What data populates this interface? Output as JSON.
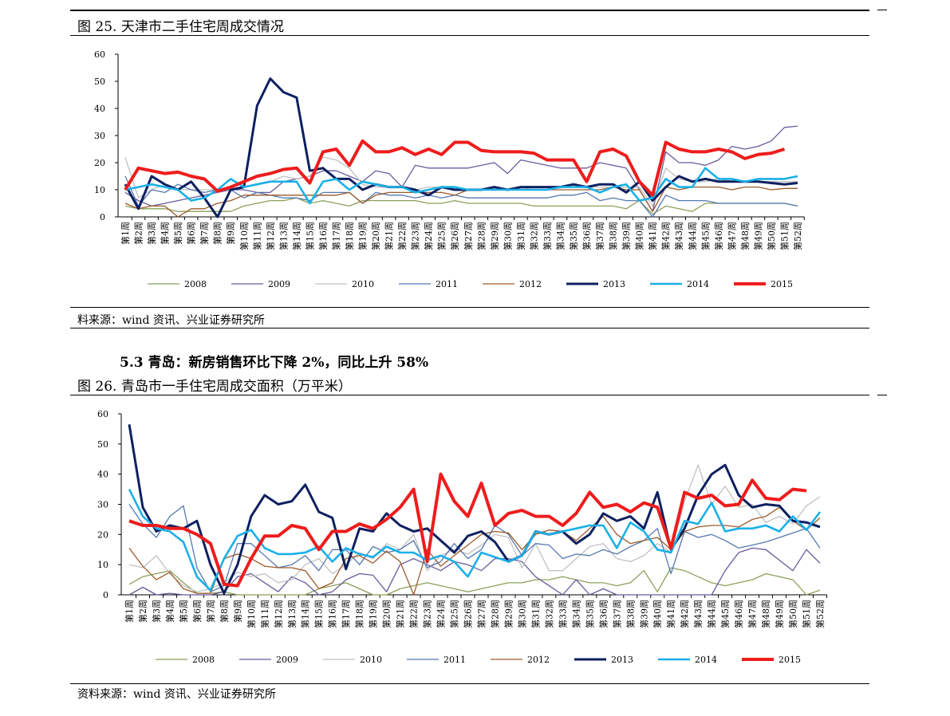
{
  "section_heading": "5.3 青岛：新房销售环比下降 2%，同比上升 58%",
  "chart_data": [
    {
      "type": "line",
      "title": "图 25.  天津市二手住宅周成交情况",
      "source": "料来源：wind 资讯、兴业证券研究所",
      "categories": [
        "第1周",
        "第2周",
        "第3周",
        "第4周",
        "第5周",
        "第6周",
        "第7周",
        "第8周",
        "第9周",
        "第10周",
        "第11周",
        "第12周",
        "第13周",
        "第14周",
        "第15周",
        "第16周",
        "第17周",
        "第18周",
        "第19周",
        "第20周",
        "第21周",
        "第22周",
        "第23周",
        "第24周",
        "第25周",
        "第26周",
        "第27周",
        "第28周",
        "第29周",
        "第30周",
        "第31周",
        "第32周",
        "第33周",
        "第34周",
        "第35周",
        "第36周",
        "第37周",
        "第38周",
        "第39周",
        "第40周",
        "第41周",
        "第42周",
        "第43周",
        "第44周",
        "第45周",
        "第46周",
        "第47周",
        "第48周",
        "第49周",
        "第50周",
        "第51周",
        "第52周"
      ],
      "ylim": [
        0,
        60
      ],
      "yticks": [
        0,
        10,
        20,
        30,
        40,
        50,
        60
      ],
      "grid": false,
      "legend": "bottom",
      "series": [
        {
          "name": "2008",
          "color": "#8aa05a",
          "values": [
            4,
            3,
            3,
            3,
            2,
            2,
            2,
            2,
            2,
            4,
            5,
            6,
            6,
            7,
            5,
            6,
            5,
            4,
            6,
            6,
            6,
            6,
            6,
            5,
            5,
            6,
            5,
            5,
            5,
            5,
            5,
            4,
            4,
            4,
            4,
            4,
            4,
            4,
            3,
            6,
            1,
            4,
            3,
            2,
            5,
            5,
            5,
            5,
            5,
            5,
            5,
            4
          ]
        },
        {
          "name": "2009",
          "color": "#6a5a9c",
          "values": [
            9,
            6,
            4,
            5,
            6,
            7,
            8,
            9,
            10,
            10,
            9,
            9,
            13,
            14,
            15,
            17,
            17,
            15,
            13,
            17,
            16,
            11,
            19,
            18,
            18,
            18,
            18,
            19,
            20,
            16,
            21,
            20,
            19,
            18,
            18,
            18,
            20,
            19,
            18,
            10,
            2,
            24,
            20,
            20,
            19,
            21,
            26,
            25,
            26,
            28,
            33,
            33.5
          ]
        },
        {
          "name": "2010",
          "color": "#c0c0c0",
          "values": [
            22,
            7,
            10,
            12,
            10,
            10,
            10,
            10,
            10,
            11,
            12,
            13,
            15,
            14,
            15,
            22,
            21,
            18,
            12,
            11,
            11,
            11,
            10,
            11,
            11,
            11,
            10,
            10,
            10,
            10,
            10,
            11,
            11,
            11,
            11,
            11,
            11,
            11,
            11,
            11,
            4,
            18,
            14,
            13,
            13,
            14,
            13,
            13,
            13,
            13,
            13,
            13
          ]
        },
        {
          "name": "2011",
          "color": "#5578b0",
          "values": [
            15,
            4,
            10,
            9,
            12,
            10,
            9,
            10,
            10,
            7,
            9,
            8,
            7,
            7,
            6,
            9,
            9,
            9,
            5,
            9,
            8,
            8,
            7,
            8,
            7,
            8,
            7,
            7,
            7,
            7,
            7,
            7,
            7,
            8,
            8,
            9,
            6,
            7,
            6,
            6,
            0,
            8,
            6,
            6,
            6,
            5,
            5,
            5,
            5,
            5,
            5,
            4
          ]
        },
        {
          "name": "2012",
          "color": "#9c5a2a",
          "values": [
            5,
            3,
            4,
            4,
            0,
            3,
            3,
            5,
            6,
            8,
            8,
            8,
            8,
            8,
            8,
            8,
            8,
            9,
            5,
            8,
            9,
            9,
            9,
            9,
            9,
            8,
            10,
            10,
            10,
            10,
            10,
            10,
            10,
            10,
            10,
            10,
            10,
            11,
            10,
            10,
            2,
            11,
            10,
            11,
            11,
            11,
            10,
            11,
            11,
            10,
            10.5,
            10.5
          ]
        },
        {
          "name": "2013",
          "color": "#0d2060",
          "values": [
            12,
            3,
            15,
            12,
            10,
            13,
            7,
            0,
            10,
            11,
            41,
            51,
            46,
            44,
            17,
            18,
            14,
            14,
            10,
            12,
            11,
            11,
            10,
            8,
            11,
            10,
            10,
            10,
            11,
            10,
            11,
            11,
            11,
            11,
            12,
            11,
            12,
            12,
            9,
            13,
            6,
            11,
            15,
            13,
            14,
            13,
            13,
            13,
            13,
            12.5,
            12,
            12.5
          ]
        },
        {
          "name": "2014",
          "color": "#1ab0e8",
          "values": [
            10,
            11,
            12,
            11,
            10,
            6,
            7,
            10,
            14,
            11,
            12,
            13,
            13,
            13,
            5,
            13,
            14,
            10,
            13,
            12,
            11,
            11,
            9,
            10,
            11,
            11,
            10,
            10,
            10,
            10,
            10,
            10,
            10,
            11,
            11,
            11,
            9,
            11,
            12,
            6,
            7,
            14,
            11,
            11,
            18,
            14,
            14,
            13,
            14,
            14,
            14,
            15
          ]
        },
        {
          "name": "2015",
          "color": "#ee1c1c",
          "values": [
            10,
            18,
            17,
            16,
            16.5,
            15,
            14,
            9.5,
            11,
            13,
            15,
            16,
            17.5,
            18,
            12.5,
            24,
            25,
            19,
            28,
            24,
            24,
            25.5,
            23,
            25,
            23,
            27.5,
            27.5,
            24.5,
            24,
            24,
            24,
            23.5,
            21,
            21,
            21,
            13,
            24,
            25,
            22.5,
            13,
            8,
            27.5,
            25,
            24,
            24,
            25,
            24,
            21.5,
            23,
            23.5,
            25,
            null
          ]
        }
      ]
    },
    {
      "type": "line",
      "title": "图 26.  青岛市一手住宅周成交面积（万平米）",
      "source": "资料来源：wind 资讯、兴业证券研究所",
      "categories": [
        "第1周",
        "第2周",
        "第3周",
        "第4周",
        "第5周",
        "第6周",
        "第7周",
        "第8周",
        "第9周",
        "第10周",
        "第11周",
        "第12周",
        "第13周",
        "第14周",
        "第15周",
        "第16周",
        "第17周",
        "第18周",
        "第19周",
        "第20周",
        "第21周",
        "第22周",
        "第23周",
        "第24周",
        "第25周",
        "第26周",
        "第27周",
        "第28周",
        "第29周",
        "第30周",
        "第31周",
        "第32周",
        "第33周",
        "第34周",
        "第35周",
        "第36周",
        "第37周",
        "第38周",
        "第39周",
        "第40周",
        "第41周",
        "第42周",
        "第43周",
        "第44周",
        "第45周",
        "第46周",
        "第47周",
        "第48周",
        "第49周",
        "第50周",
        "第51周",
        "第52周"
      ],
      "ylim": [
        0,
        60
      ],
      "yticks": [
        0,
        10,
        20,
        30,
        40,
        50,
        60
      ],
      "grid": false,
      "legend": "bottom",
      "series": [
        {
          "name": "2008",
          "color": "#8aa05a",
          "values": [
            3.5,
            6,
            7,
            8,
            4,
            0.5,
            0.5,
            1,
            0,
            0,
            0,
            0,
            0,
            0,
            2,
            3,
            4,
            2,
            0,
            0,
            2,
            3,
            4,
            3,
            2,
            1,
            2,
            3,
            4,
            4,
            5,
            5,
            6,
            5,
            4,
            4,
            3,
            4,
            8,
            1,
            9,
            8,
            6,
            4,
            3,
            4,
            5,
            7,
            6,
            5,
            0,
            1.5
          ]
        },
        {
          "name": "2009",
          "color": "#6a5a9c",
          "values": [
            0,
            2.5,
            0,
            0.5,
            0,
            0,
            0,
            1,
            6,
            7,
            4,
            1,
            6,
            4,
            0,
            1,
            5,
            7,
            6.5,
            1,
            10,
            12,
            10,
            8,
            11,
            10,
            8,
            12,
            12,
            11,
            6,
            3,
            0,
            5,
            0,
            2,
            0,
            0,
            0,
            0,
            0,
            0,
            0,
            0,
            8,
            14,
            15.5,
            15,
            11.5,
            8,
            15,
            10.5
          ]
        },
        {
          "name": "2010",
          "color": "#c0c0c0",
          "values": [
            10,
            9,
            13,
            7,
            3,
            1,
            2,
            4,
            7.5,
            6,
            7,
            4,
            5,
            10,
            12,
            7,
            10,
            14,
            12,
            17,
            15,
            20,
            8,
            13,
            15,
            13.5,
            16.5,
            20,
            19,
            9,
            17,
            8,
            8,
            12,
            16,
            17,
            12,
            11,
            13,
            17,
            14,
            31,
            43,
            30,
            36,
            29,
            30,
            24,
            26,
            23.5,
            29.5,
            32.5
          ]
        },
        {
          "name": "2011",
          "color": "#5578b0",
          "values": [
            30,
            23.5,
            19,
            26,
            29.5,
            9,
            1,
            3,
            17,
            17,
            13,
            9,
            10,
            13,
            8,
            15,
            15,
            10,
            16,
            14,
            15,
            18,
            9,
            11,
            17,
            12,
            15,
            23,
            20,
            13,
            17,
            16.5,
            12,
            13.5,
            13,
            15,
            13.5,
            16,
            18,
            22,
            7,
            21,
            19,
            20,
            18,
            15.5,
            16.5,
            17.5,
            19,
            20.5,
            22,
            15.5
          ]
        },
        {
          "name": "2012",
          "color": "#9c5a2a",
          "values": [
            15.5,
            9.5,
            5,
            7.5,
            2,
            0.5,
            0.5,
            12,
            13.5,
            12,
            9.5,
            9,
            9,
            8,
            2,
            4,
            12,
            13,
            10.5,
            14.5,
            11,
            0,
            15,
            9.5,
            13,
            16.5,
            20,
            21,
            20.5,
            15,
            20,
            21.5,
            21,
            18,
            22,
            26,
            20,
            17,
            18,
            19,
            15,
            21,
            22.5,
            23,
            23,
            22.5,
            25,
            26,
            29,
            24.5,
            21.5,
            25.5
          ]
        },
        {
          "name": "2013",
          "color": "#0d2060",
          "values": [
            56.5,
            29,
            21,
            23,
            22,
            24.5,
            10,
            0.5,
            10,
            26,
            33,
            30,
            31,
            36.5,
            27.5,
            25.5,
            8.5,
            22,
            21,
            27,
            23,
            21,
            22,
            18,
            14,
            19.5,
            21,
            17.5,
            11,
            13,
            21,
            20,
            21,
            17,
            20,
            27,
            24.5,
            26,
            22,
            34,
            15,
            22,
            33,
            40,
            43,
            33,
            29,
            30,
            29.5,
            24.5,
            24,
            22.5
          ]
        },
        {
          "name": "2014",
          "color": "#1ab0e8",
          "values": [
            35,
            26,
            22,
            21,
            17.5,
            6,
            1.5,
            12,
            19.5,
            21.5,
            15.5,
            13.5,
            13.5,
            14,
            16,
            11,
            15.5,
            13.5,
            12.5,
            16,
            14,
            14,
            11.5,
            13,
            11,
            6,
            14,
            12.5,
            11,
            13,
            21,
            20,
            21,
            22,
            23,
            23,
            15.5,
            24,
            21,
            15,
            14,
            24.5,
            23.5,
            30.5,
            21,
            22,
            22,
            23,
            21,
            26,
            21.5,
            27.5
          ]
        },
        {
          "name": "2015",
          "color": "#ee1c1c",
          "values": [
            24.5,
            23,
            23,
            22,
            22,
            20,
            17,
            3.5,
            3,
            12,
            19.5,
            19.5,
            23,
            22,
            15,
            21,
            21,
            23.5,
            22,
            25,
            29,
            35,
            11,
            40,
            31,
            26,
            37,
            23,
            27,
            28,
            26,
            26,
            23,
            27,
            34,
            29,
            30,
            27.5,
            30.5,
            29,
            15.5,
            34,
            32,
            33,
            29.5,
            30,
            38,
            32,
            31.5,
            35,
            34.5,
            null
          ]
        }
      ]
    }
  ]
}
